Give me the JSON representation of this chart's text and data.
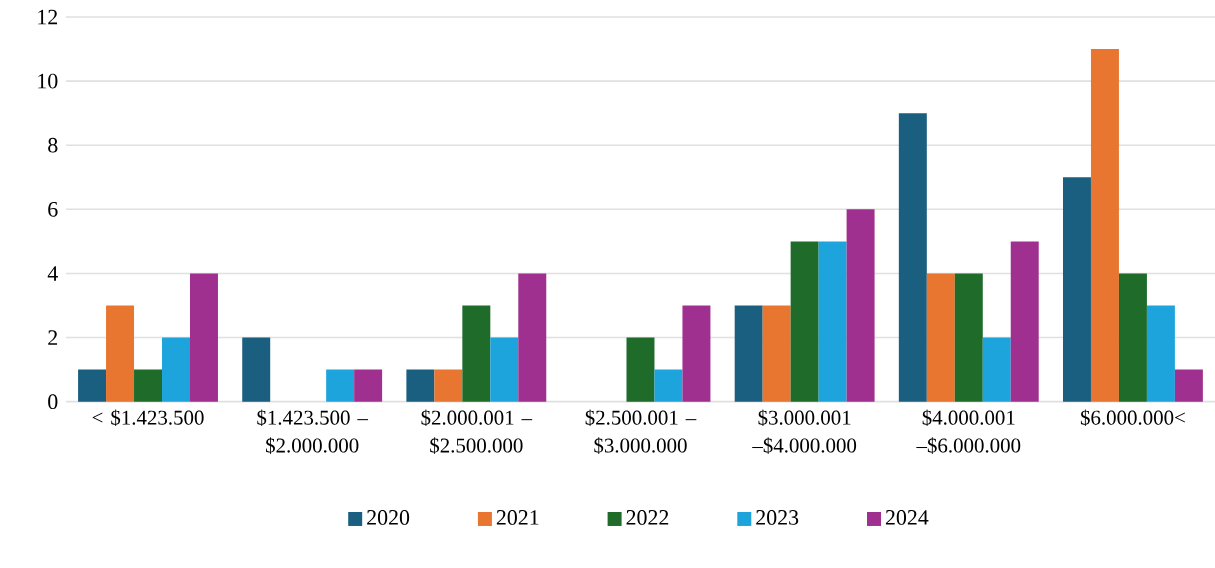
{
  "chart_data": {
    "type": "bar",
    "categories": [
      "< $1.423.500",
      "$1.423.500 – $2.000.000",
      "$2.000.001 – $2.500.000",
      "$2.500.001 – $3.000.000",
      "$3.000.001 –$4.000.000",
      "$4.000.001 –$6.000.000",
      "$6.000.000<"
    ],
    "series": [
      {
        "name": "2020",
        "color": "#1a5e80",
        "values": [
          1,
          2,
          1,
          0,
          3,
          9,
          7
        ]
      },
      {
        "name": "2021",
        "color": "#e87530",
        "values": [
          3,
          0,
          1,
          0,
          3,
          4,
          11
        ]
      },
      {
        "name": "2022",
        "color": "#1e6b2a",
        "values": [
          1,
          0,
          3,
          2,
          5,
          4,
          4
        ]
      },
      {
        "name": "2023",
        "color": "#1ea4dc",
        "values": [
          2,
          1,
          2,
          1,
          5,
          2,
          3
        ]
      },
      {
        "name": "2024",
        "color": "#a0308f",
        "values": [
          4,
          1,
          4,
          3,
          6,
          5,
          1
        ]
      }
    ],
    "ylim": [
      0,
      12
    ],
    "yticks": [
      0,
      2,
      4,
      6,
      8,
      10,
      12
    ],
    "grid": "y",
    "legend": "bottom"
  }
}
